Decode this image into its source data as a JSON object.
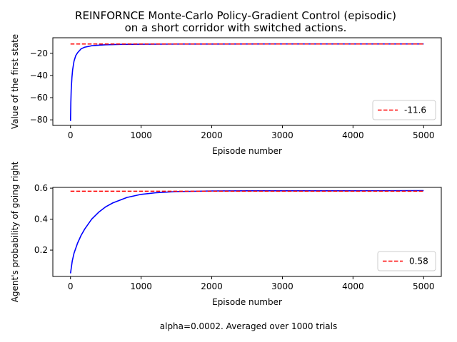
{
  "title": "REINFORNCE Monte-Carlo Policy-Gradient Control (episodic)\non a short corridor with switched actions.",
  "caption": "alpha=0.0002. Averaged over 1000 trials",
  "colors": {
    "curve": "#0000ff",
    "reference": "#ff0000"
  },
  "chart_data": [
    {
      "type": "line",
      "xlabel": "Episode number",
      "ylabel": "Value of the first state",
      "xlim": [
        -250,
        5250
      ],
      "ylim": [
        -85,
        -6
      ],
      "xticks": [
        0,
        1000,
        2000,
        3000,
        4000,
        5000
      ],
      "yticks": [
        -80,
        -60,
        -40,
        -20
      ],
      "legend_position": "lower-right",
      "series": [
        {
          "style": "solid",
          "color": "#0000ff",
          "x": [
            0,
            5,
            10,
            20,
            30,
            50,
            75,
            100,
            150,
            200,
            300,
            400,
            500,
            700,
            1000,
            1500,
            2000,
            3000,
            4000,
            5000
          ],
          "values": [
            -81,
            -64,
            -53,
            -42,
            -35,
            -27,
            -22,
            -19.5,
            -16,
            -14.5,
            -13.2,
            -12.7,
            -12.3,
            -12.0,
            -11.8,
            -11.7,
            -11.65,
            -11.6,
            -11.6,
            -11.6
          ]
        },
        {
          "name": "-11.6",
          "style": "dashed",
          "color": "#ff0000",
          "x": [
            0,
            5000
          ],
          "values": [
            -11.6,
            -11.6
          ]
        }
      ]
    },
    {
      "type": "line",
      "xlabel": "Episode number",
      "ylabel": "Agent's probability of going right",
      "xlim": [
        -250,
        5250
      ],
      "ylim": [
        0.03,
        0.605
      ],
      "xticks": [
        0,
        1000,
        2000,
        3000,
        4000,
        5000
      ],
      "yticks": [
        0.2,
        0.4,
        0.6
      ],
      "legend_position": "lower-right",
      "series": [
        {
          "style": "solid",
          "color": "#0000ff",
          "x": [
            0,
            25,
            50,
            100,
            150,
            200,
            300,
            400,
            500,
            600,
            800,
            1000,
            1200,
            1500,
            2000,
            2500,
            3000,
            4000,
            5000
          ],
          "values": [
            0.05,
            0.13,
            0.18,
            0.245,
            0.295,
            0.335,
            0.4,
            0.445,
            0.48,
            0.505,
            0.54,
            0.56,
            0.57,
            0.578,
            0.582,
            0.583,
            0.583,
            0.583,
            0.584
          ]
        },
        {
          "name": "0.58",
          "style": "dashed",
          "color": "#ff0000",
          "x": [
            0,
            5000
          ],
          "values": [
            0.58,
            0.58
          ]
        }
      ]
    }
  ]
}
